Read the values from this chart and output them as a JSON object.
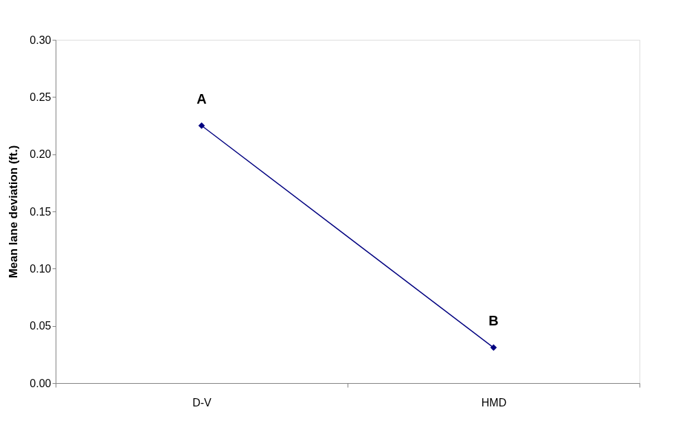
{
  "chart_data": {
    "type": "line",
    "ylabel": "Mean lane deviation (ft.)",
    "categories": [
      "D-V",
      "HMD"
    ],
    "series": [
      {
        "color": "#000080",
        "values": [
          0.225,
          0.031
        ]
      }
    ],
    "ylim": [
      0,
      0.3
    ],
    "yticks": [
      {
        "value": 0,
        "label": "0.00"
      },
      0.05,
      {
        "value": 0.1,
        "label": "0.10"
      },
      0.15,
      {
        "value": 0.2,
        "label": "0.20"
      },
      0.25,
      {
        "value": 0.3,
        "label": "0.30"
      }
    ],
    "marker": "diamond",
    "line_style": "solid",
    "annotations": [
      {
        "text": "A",
        "x": "D-V",
        "y": 0.225
      },
      {
        "text": "B",
        "x": "HMD",
        "y": 0.031
      }
    ]
  }
}
